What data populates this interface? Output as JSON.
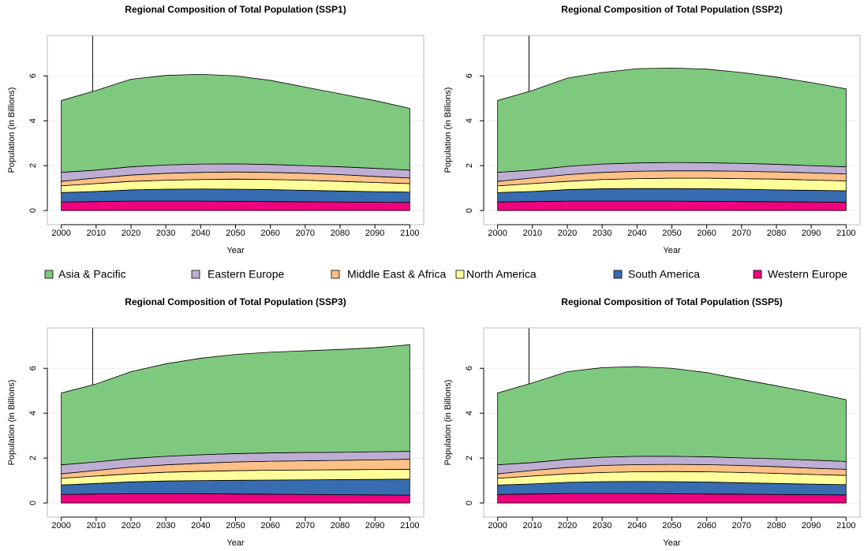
{
  "chart_data": [
    {
      "type": "stacked-area",
      "title": "Regional Composition of Total Population (SSP1)",
      "x_label": "Year",
      "y_label": "Population (in Billions)",
      "x": [
        2000,
        2010,
        2020,
        2030,
        2040,
        2050,
        2060,
        2070,
        2080,
        2090,
        2100
      ],
      "series": [
        {
          "name": "Western Europe",
          "color": "#f0027f",
          "values": [
            0.38,
            0.4,
            0.42,
            0.42,
            0.42,
            0.41,
            0.4,
            0.39,
            0.38,
            0.37,
            0.36
          ]
        },
        {
          "name": "South America",
          "color": "#386cb0",
          "values": [
            0.42,
            0.45,
            0.5,
            0.53,
            0.54,
            0.54,
            0.53,
            0.51,
            0.49,
            0.47,
            0.46
          ]
        },
        {
          "name": "North America",
          "color": "#ffff99",
          "values": [
            0.3,
            0.35,
            0.38,
            0.4,
            0.42,
            0.45,
            0.45,
            0.45,
            0.43,
            0.41,
            0.38
          ]
        },
        {
          "name": "Middle East & Africa",
          "color": "#fdc086",
          "values": [
            0.2,
            0.25,
            0.28,
            0.31,
            0.32,
            0.32,
            0.32,
            0.31,
            0.3,
            0.27,
            0.25
          ]
        },
        {
          "name": "Eastern Europe",
          "color": "#beaed4",
          "values": [
            0.4,
            0.35,
            0.37,
            0.37,
            0.37,
            0.36,
            0.35,
            0.34,
            0.35,
            0.36,
            0.35
          ]
        },
        {
          "name": "Asia & Pacific",
          "color": "#7fc97f",
          "values": [
            3.2,
            3.55,
            3.9,
            3.99,
            4.0,
            3.92,
            3.75,
            3.5,
            3.25,
            3.02,
            2.75
          ]
        }
      ],
      "xlim": [
        1996,
        2104
      ],
      "ylim": [
        -0.63,
        7.8
      ],
      "xticks": [
        2000,
        2010,
        2020,
        2030,
        2040,
        2050,
        2060,
        2070,
        2080,
        2090,
        2100
      ],
      "yticks": [
        0,
        2,
        4,
        6
      ],
      "grid": true,
      "vline": 2009
    },
    {
      "type": "stacked-area",
      "title": "Regional Composition of Total Population (SSP2)",
      "x_label": "Year",
      "y_label": "Population (in Billions)",
      "x": [
        2000,
        2010,
        2020,
        2030,
        2040,
        2050,
        2060,
        2070,
        2080,
        2090,
        2100
      ],
      "series": [
        {
          "name": "Western Europe",
          "color": "#f0027f",
          "values": [
            0.38,
            0.4,
            0.42,
            0.42,
            0.42,
            0.42,
            0.41,
            0.4,
            0.39,
            0.38,
            0.37
          ]
        },
        {
          "name": "South America",
          "color": "#386cb0",
          "values": [
            0.42,
            0.45,
            0.51,
            0.55,
            0.56,
            0.56,
            0.56,
            0.55,
            0.53,
            0.52,
            0.51
          ]
        },
        {
          "name": "North America",
          "color": "#ffff99",
          "values": [
            0.3,
            0.35,
            0.37,
            0.41,
            0.44,
            0.46,
            0.47,
            0.47,
            0.48,
            0.46,
            0.44
          ]
        },
        {
          "name": "Middle East & Africa",
          "color": "#fdc086",
          "values": [
            0.2,
            0.25,
            0.3,
            0.32,
            0.33,
            0.33,
            0.33,
            0.33,
            0.32,
            0.32,
            0.31
          ]
        },
        {
          "name": "Eastern Europe",
          "color": "#beaed4",
          "values": [
            0.4,
            0.35,
            0.37,
            0.37,
            0.37,
            0.37,
            0.36,
            0.35,
            0.34,
            0.32,
            0.32
          ]
        },
        {
          "name": "Asia & Pacific",
          "color": "#7fc97f",
          "values": [
            3.2,
            3.55,
            3.93,
            4.08,
            4.2,
            4.21,
            4.17,
            4.05,
            3.89,
            3.7,
            3.47
          ]
        }
      ],
      "xlim": [
        1996,
        2104
      ],
      "ylim": [
        -0.63,
        7.8
      ],
      "xticks": [
        2000,
        2010,
        2020,
        2030,
        2040,
        2050,
        2060,
        2070,
        2080,
        2090,
        2100
      ],
      "yticks": [
        0,
        2,
        4,
        6
      ],
      "grid": true,
      "vline": 2009
    },
    {
      "type": "stacked-area",
      "title": "Regional Composition of Total Population (SSP3)",
      "x_label": "Year",
      "y_label": "Population (in Billions)",
      "x": [
        2000,
        2010,
        2020,
        2030,
        2040,
        2050,
        2060,
        2070,
        2080,
        2090,
        2100
      ],
      "series": [
        {
          "name": "Western Europe",
          "color": "#f0027f",
          "values": [
            0.38,
            0.4,
            0.41,
            0.41,
            0.41,
            0.4,
            0.39,
            0.38,
            0.37,
            0.36,
            0.35
          ]
        },
        {
          "name": "South America",
          "color": "#386cb0",
          "values": [
            0.42,
            0.47,
            0.53,
            0.57,
            0.59,
            0.61,
            0.63,
            0.65,
            0.67,
            0.69,
            0.71
          ]
        },
        {
          "name": "North America",
          "color": "#ffff99",
          "values": [
            0.3,
            0.33,
            0.36,
            0.39,
            0.41,
            0.43,
            0.44,
            0.44,
            0.44,
            0.44,
            0.44
          ]
        },
        {
          "name": "Middle East & Africa",
          "color": "#fdc086",
          "values": [
            0.2,
            0.25,
            0.3,
            0.33,
            0.36,
            0.39,
            0.4,
            0.41,
            0.42,
            0.43,
            0.45
          ]
        },
        {
          "name": "Eastern Europe",
          "color": "#beaed4",
          "values": [
            0.4,
            0.38,
            0.38,
            0.38,
            0.38,
            0.37,
            0.37,
            0.37,
            0.36,
            0.36,
            0.35
          ]
        },
        {
          "name": "Asia & Pacific",
          "color": "#7fc97f",
          "values": [
            3.2,
            3.47,
            3.87,
            4.12,
            4.3,
            4.42,
            4.49,
            4.53,
            4.58,
            4.64,
            4.75
          ]
        }
      ],
      "xlim": [
        1996,
        2104
      ],
      "ylim": [
        -0.63,
        7.8
      ],
      "xticks": [
        2000,
        2010,
        2020,
        2030,
        2040,
        2050,
        2060,
        2070,
        2080,
        2090,
        2100
      ],
      "yticks": [
        0,
        2,
        4,
        6
      ],
      "grid": true,
      "vline": 2009
    },
    {
      "type": "stacked-area",
      "title": "Regional Composition of Total Population (SSP5)",
      "x_label": "Year",
      "y_label": "Population (in Billions)",
      "x": [
        2000,
        2010,
        2020,
        2030,
        2040,
        2050,
        2060,
        2070,
        2080,
        2090,
        2100
      ],
      "series": [
        {
          "name": "Western Europe",
          "color": "#f0027f",
          "values": [
            0.38,
            0.4,
            0.42,
            0.42,
            0.42,
            0.41,
            0.4,
            0.39,
            0.38,
            0.37,
            0.36
          ]
        },
        {
          "name": "South America",
          "color": "#386cb0",
          "values": [
            0.42,
            0.45,
            0.5,
            0.53,
            0.54,
            0.54,
            0.53,
            0.51,
            0.49,
            0.47,
            0.46
          ]
        },
        {
          "name": "North America",
          "color": "#ffff99",
          "values": [
            0.3,
            0.35,
            0.38,
            0.41,
            0.43,
            0.45,
            0.46,
            0.46,
            0.45,
            0.43,
            0.41
          ]
        },
        {
          "name": "Middle East & Africa",
          "color": "#fdc086",
          "values": [
            0.2,
            0.25,
            0.28,
            0.31,
            0.32,
            0.32,
            0.32,
            0.31,
            0.3,
            0.28,
            0.27
          ]
        },
        {
          "name": "Eastern Europe",
          "color": "#beaed4",
          "values": [
            0.4,
            0.35,
            0.37,
            0.37,
            0.37,
            0.36,
            0.35,
            0.34,
            0.35,
            0.36,
            0.35
          ]
        },
        {
          "name": "Asia & Pacific",
          "color": "#7fc97f",
          "values": [
            3.2,
            3.55,
            3.9,
            3.99,
            4.0,
            3.92,
            3.75,
            3.5,
            3.25,
            3.02,
            2.75
          ]
        }
      ],
      "xlim": [
        1996,
        2104
      ],
      "ylim": [
        -0.63,
        7.8
      ],
      "xticks": [
        2000,
        2010,
        2020,
        2030,
        2040,
        2050,
        2060,
        2070,
        2080,
        2090,
        2100
      ],
      "yticks": [
        0,
        2,
        4,
        6
      ],
      "grid": true,
      "vline": 2009
    }
  ]
}
